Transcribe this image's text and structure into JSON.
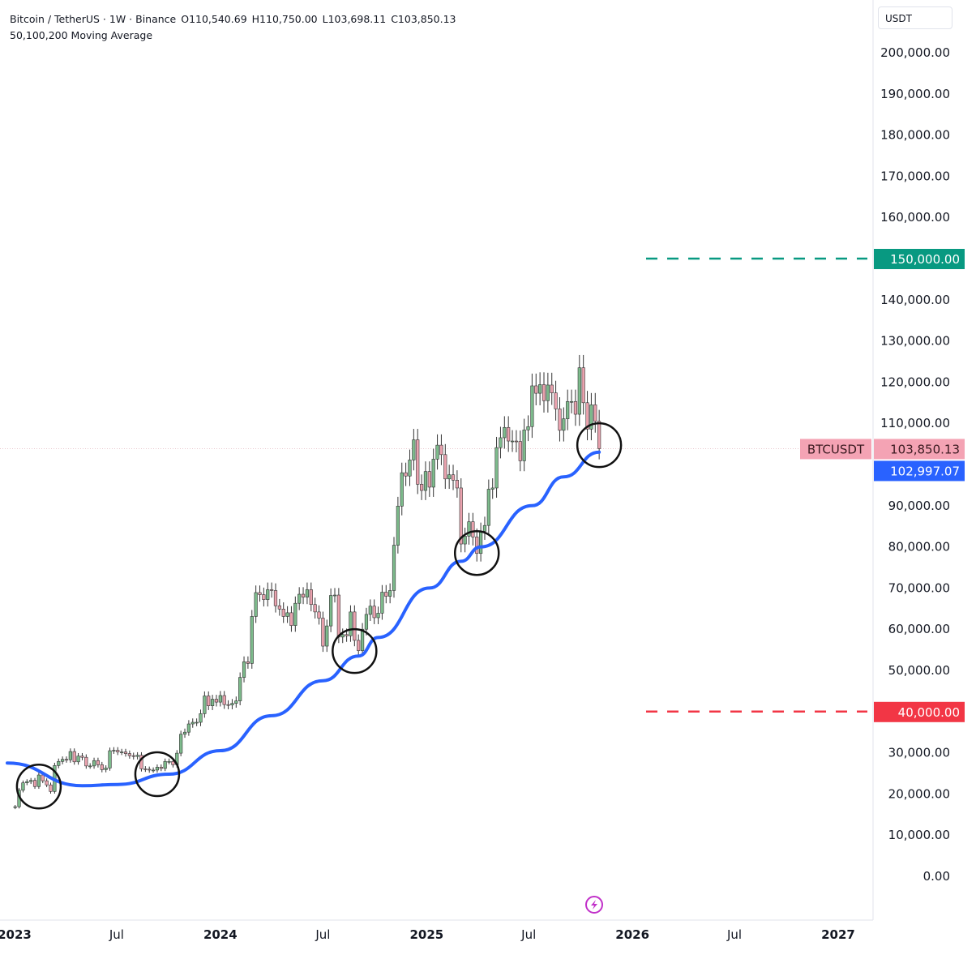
{
  "header": {
    "symbol": "Bitcoin / TetherUS · 1W · Binance",
    "open": "O110,540.69",
    "high": "H110,750.00",
    "low": "L103,698.11",
    "close": "C103,850.13",
    "indicator": "50,100,200 Moving Average"
  },
  "price_axis": {
    "unit": "USDT"
  },
  "colors": {
    "up": "#7dbb8c",
    "down": "#eaa2ae",
    "ma": "#2962ff",
    "target": "#089981",
    "stop": "#f23645",
    "last_price": "#f4a3b4"
  },
  "chart_data": {
    "type": "candlestick",
    "title": "",
    "ylim": [
      0,
      200000
    ],
    "y_ticks": [
      "200,000.00",
      "190,000.00",
      "180,000.00",
      "170,000.00",
      "160,000.00",
      "140,000.00",
      "130,000.00",
      "120,000.00",
      "110,000.00",
      "90,000.00",
      "80,000.00",
      "70,000.00",
      "60,000.00",
      "50,000.00",
      "30,000.00",
      "20,000.00",
      "10,000.00",
      "0.00"
    ],
    "y_tick_values": [
      200000,
      190000,
      180000,
      170000,
      160000,
      140000,
      130000,
      120000,
      110000,
      90000,
      80000,
      70000,
      60000,
      50000,
      30000,
      20000,
      10000,
      0
    ],
    "x_ticks": [
      {
        "label": "2023",
        "date": "2023-01-01",
        "bold": true
      },
      {
        "label": "Jul",
        "date": "2023-07-01",
        "bold": false
      },
      {
        "label": "2024",
        "date": "2024-01-01",
        "bold": true
      },
      {
        "label": "Jul",
        "date": "2024-07-01",
        "bold": false
      },
      {
        "label": "2025",
        "date": "2025-01-01",
        "bold": true
      },
      {
        "label": "Jul",
        "date": "2025-07-01",
        "bold": false
      },
      {
        "label": "2026",
        "date": "2026-01-01",
        "bold": true
      },
      {
        "label": "Jul",
        "date": "2026-07-01",
        "bold": false
      },
      {
        "label": "2027",
        "date": "2027-01-01",
        "bold": true
      }
    ],
    "first_week": "2023-01-02",
    "weekly_close": [
      16900,
      20900,
      22700,
      23000,
      23300,
      21800,
      24600,
      23200,
      22200,
      20600,
      26900,
      27900,
      28400,
      28300,
      30300,
      27800,
      29200,
      28900,
      26800,
      26800,
      28100,
      27100,
      25900,
      26300,
      30500,
      30600,
      30200,
      30200,
      29800,
      29300,
      29100,
      29400,
      26100,
      26000,
      25800,
      25800,
      26500,
      26200,
      27900,
      27900,
      27100,
      29900,
      34500,
      35000,
      37000,
      37400,
      37400,
      39500,
      43800,
      41400,
      43000,
      42300,
      43900,
      41700,
      41600,
      42000,
      42600,
      48300,
      52100,
      51700,
      63100,
      68900,
      68400,
      67200,
      69600,
      69400,
      65700,
      64900,
      63100,
      64000,
      60900,
      66300,
      68500,
      67800,
      69600,
      66000,
      64200,
      62700,
      55900,
      60800,
      68200,
      68300,
      58100,
      58700,
      58400,
      64200,
      57300,
      54800,
      60000,
      63600,
      65600,
      62800,
      63900,
      69000,
      68000,
      69400,
      80400,
      89900,
      98000,
      97200,
      101100,
      106000,
      95200,
      93700,
      98300,
      94500,
      101300,
      104700,
      102400,
      96500,
      97500,
      96200,
      94300,
      80700,
      82600,
      86100,
      82400,
      78400,
      83800,
      85200,
      94000,
      94300,
      104100,
      106500,
      109000,
      105700,
      105700,
      105600,
      100900,
      108400,
      109200,
      119100,
      117300,
      119400,
      115500,
      119300,
      117400,
      113500,
      108300,
      111100,
      115300,
      115300,
      112200,
      123500,
      115000,
      108600,
      114500,
      110500,
      103850.13
    ],
    "moving_average": [
      [
        "2022-12-19",
        27500
      ],
      [
        "2023-05-01",
        22000
      ],
      [
        "2023-07-03",
        22300
      ],
      [
        "2023-10-02",
        24800
      ],
      [
        "2024-01-01",
        30500
      ],
      [
        "2024-04-01",
        39000
      ],
      [
        "2024-07-01",
        47500
      ],
      [
        "2024-09-02",
        53500
      ],
      [
        "2024-10-07",
        58000
      ],
      [
        "2025-01-06",
        70000
      ],
      [
        "2025-03-03",
        76500
      ],
      [
        "2025-04-07",
        80000
      ],
      [
        "2025-07-07",
        90000
      ],
      [
        "2025-09-01",
        97000
      ],
      [
        "2025-11-03",
        103000
      ]
    ],
    "circled_touches": [
      [
        "2023-02-13",
        21800
      ],
      [
        "2023-09-11",
        24800
      ],
      [
        "2024-08-26",
        54700
      ],
      [
        "2025-03-31",
        78500
      ],
      [
        "2025-11-03",
        104700
      ]
    ],
    "levels": [
      {
        "price": 150000,
        "label": "150,000.00",
        "color": "#089981",
        "style": "dashed"
      },
      {
        "price": 40000,
        "label": "40,000.00",
        "color": "#f23645",
        "style": "dashed"
      }
    ],
    "last_price": {
      "symbol": "BTCUSDT",
      "value": 103850.13,
      "label": "103,850.13"
    },
    "ma_last": {
      "value": 102997.07,
      "label": "102,997.07"
    }
  }
}
